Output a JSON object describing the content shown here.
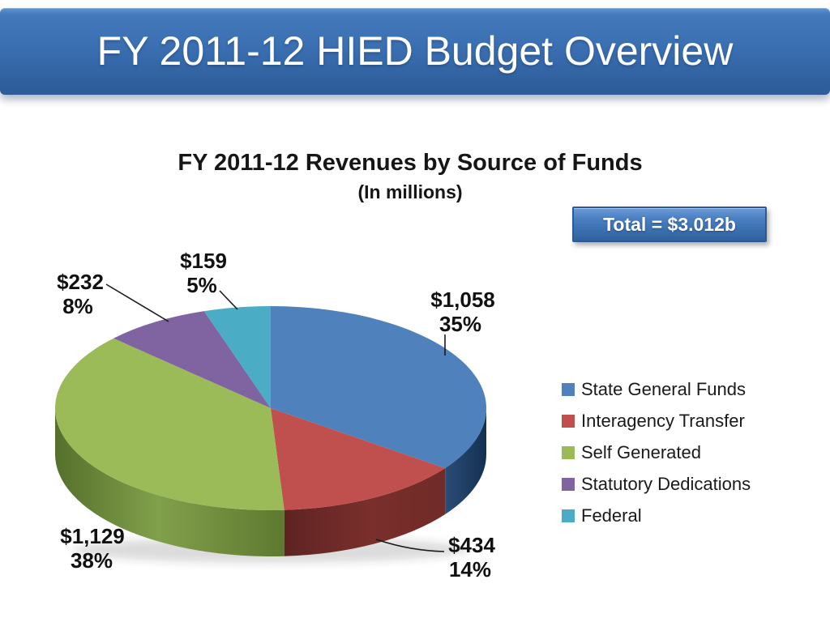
{
  "slide": {
    "title": "FY 2011-12 HIED Budget Overview"
  },
  "chart": {
    "title": "FY 2011-12 Revenues by Source of Funds",
    "subtitle": "(In millions)",
    "total_label": "Total = $3.012b"
  },
  "chart_data": {
    "type": "pie",
    "title": "FY 2011-12 Revenues by Source of Funds (In millions)",
    "units": "millions of dollars",
    "total": "$3.012b",
    "style": "3d-pie",
    "start_angle_deg": 0,
    "direction": "clockwise",
    "legend_position": "right",
    "slices": [
      {
        "label": "State General Funds",
        "value": 1058,
        "pct": 35,
        "value_label": "$1,058",
        "pct_label": "35%",
        "color": "#4F81BD"
      },
      {
        "label": "Interagency Transfer",
        "value": 434,
        "pct": 14,
        "value_label": "$434",
        "pct_label": "14%",
        "color": "#C0504D"
      },
      {
        "label": "Self Generated",
        "value": 1129,
        "pct": 38,
        "value_label": "$1,129",
        "pct_label": "38%",
        "color": "#9BBB59"
      },
      {
        "label": "Statutory Dedications",
        "value": 232,
        "pct": 8,
        "value_label": "$232",
        "pct_label": "8%",
        "color": "#8064A2"
      },
      {
        "label": "Federal",
        "value": 159,
        "pct": 5,
        "value_label": "$159",
        "pct_label": "5%",
        "color": "#4BACC6"
      }
    ]
  }
}
